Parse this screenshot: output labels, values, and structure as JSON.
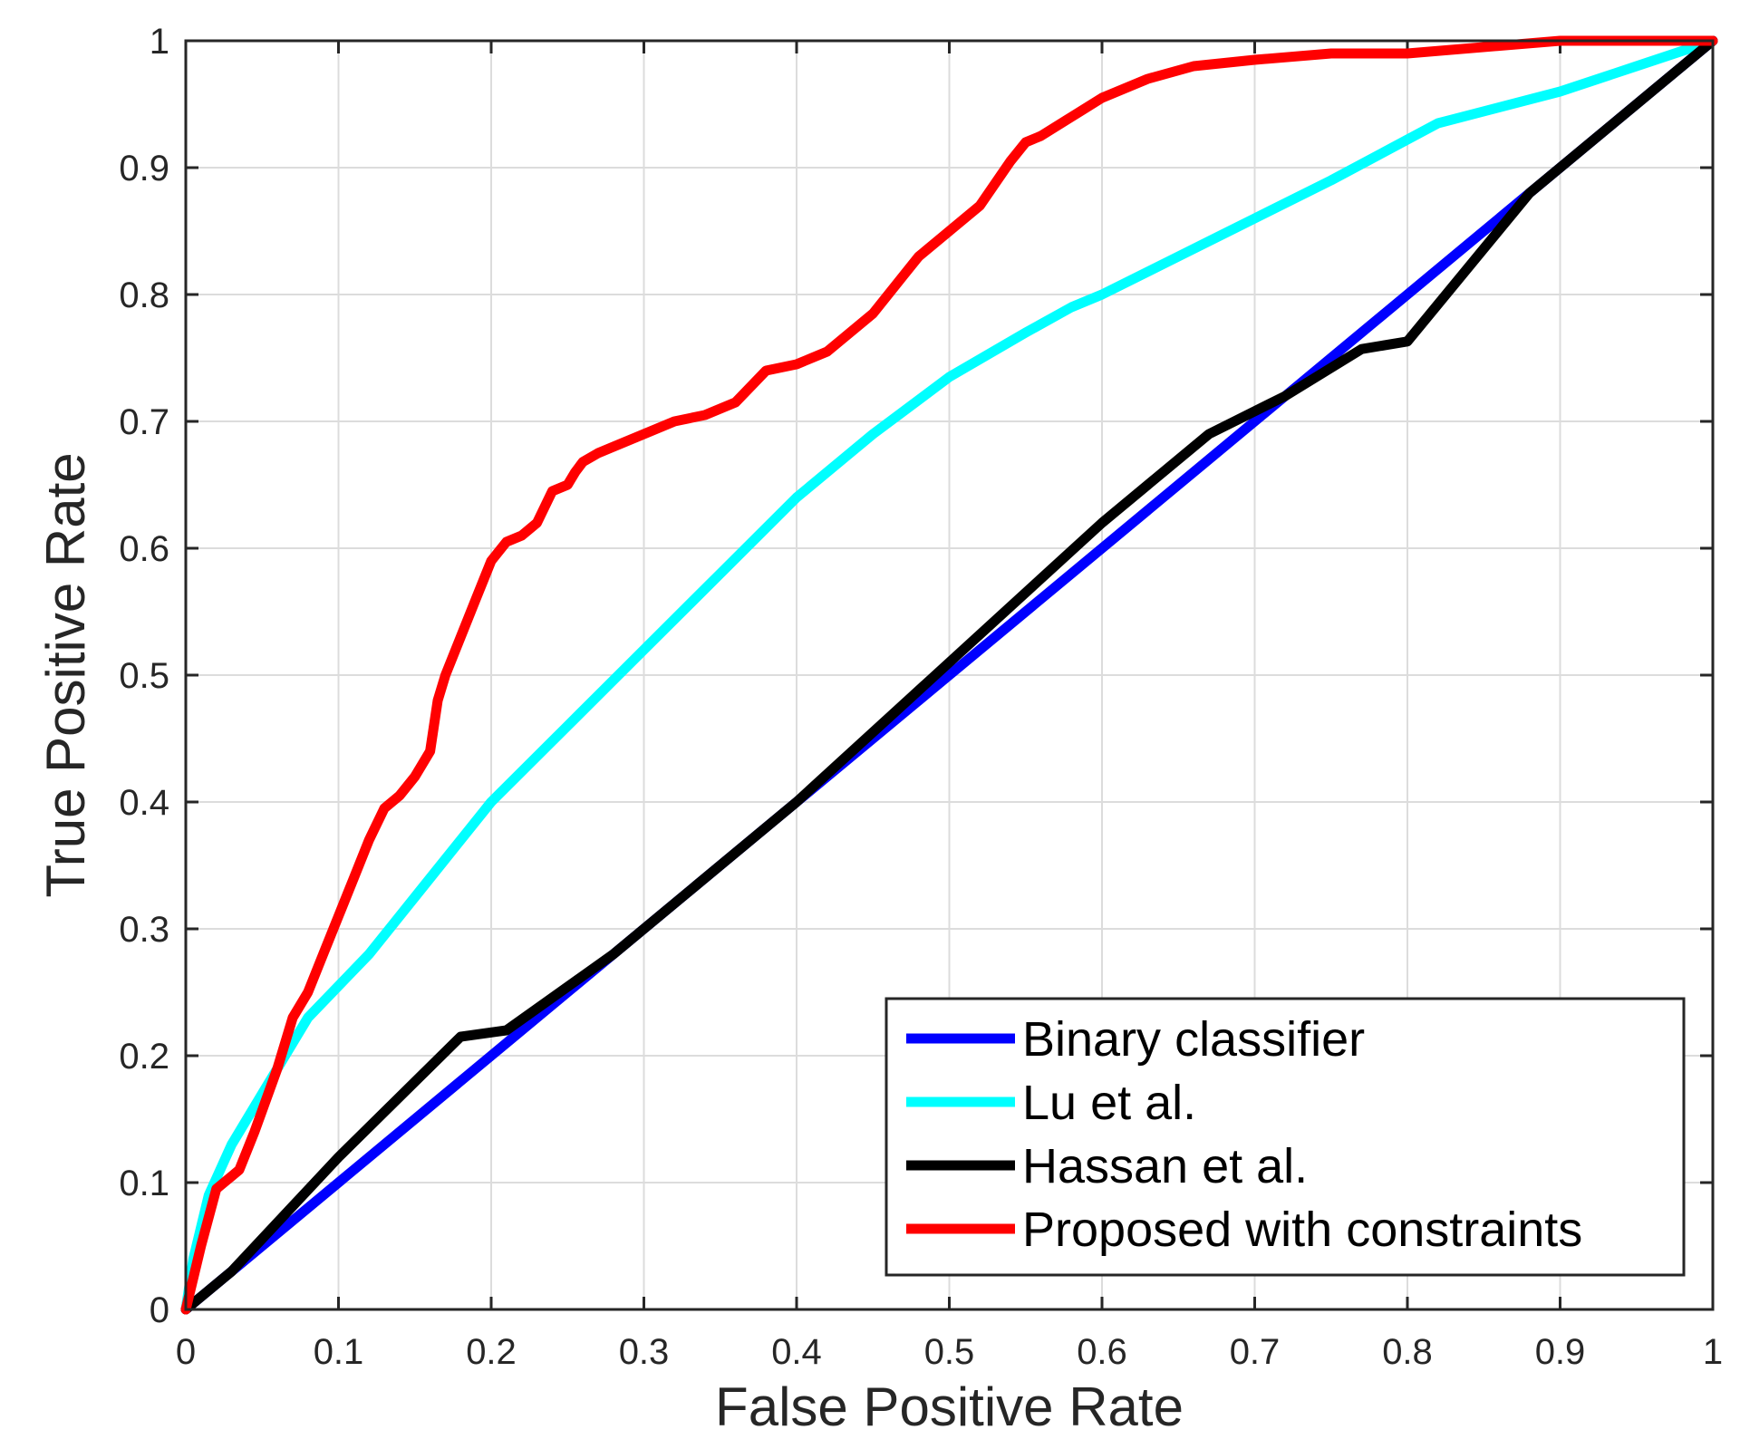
{
  "chart_data": {
    "type": "line",
    "title": "",
    "xlabel": "False Positive Rate",
    "ylabel": "True Positive Rate",
    "xlim": [
      0,
      1
    ],
    "ylim": [
      0,
      1
    ],
    "x_ticks": [
      "0",
      "0.1",
      "0.2",
      "0.3",
      "0.4",
      "0.5",
      "0.6",
      "0.7",
      "0.8",
      "0.9",
      "1"
    ],
    "y_ticks": [
      "0",
      "0.1",
      "0.2",
      "0.3",
      "0.4",
      "0.5",
      "0.6",
      "0.7",
      "0.8",
      "0.9",
      "1"
    ],
    "grid": true,
    "legend_position": "bottom-right",
    "series": [
      {
        "name": "Binary classifier",
        "color": "#0000ff",
        "x": [
          0,
          1
        ],
        "y": [
          0,
          1
        ]
      },
      {
        "name": "Lu et al.",
        "color": "#00ffff",
        "x": [
          0,
          0.005,
          0.015,
          0.03,
          0.05,
          0.08,
          0.12,
          0.16,
          0.2,
          0.25,
          0.3,
          0.35,
          0.4,
          0.45,
          0.5,
          0.55,
          0.58,
          0.6,
          0.65,
          0.7,
          0.75,
          0.82,
          0.9,
          0.95,
          1
        ],
        "y": [
          0,
          0.04,
          0.09,
          0.13,
          0.17,
          0.23,
          0.28,
          0.34,
          0.4,
          0.46,
          0.52,
          0.58,
          0.64,
          0.69,
          0.735,
          0.77,
          0.79,
          0.8,
          0.83,
          0.86,
          0.89,
          0.935,
          0.96,
          0.98,
          1
        ]
      },
      {
        "name": "Hassan et al.",
        "color": "#000000",
        "x": [
          0,
          0.03,
          0.1,
          0.18,
          0.21,
          0.28,
          0.4,
          0.5,
          0.6,
          0.67,
          0.72,
          0.77,
          0.8,
          0.88,
          0.95,
          1
        ],
        "y": [
          0,
          0.03,
          0.12,
          0.215,
          0.22,
          0.28,
          0.4,
          0.51,
          0.62,
          0.69,
          0.72,
          0.757,
          0.763,
          0.88,
          0.95,
          1
        ]
      },
      {
        "name": "Proposed with constraints",
        "color": "#ff0000",
        "x": [
          0,
          0.01,
          0.02,
          0.035,
          0.045,
          0.06,
          0.07,
          0.08,
          0.09,
          0.1,
          0.11,
          0.12,
          0.13,
          0.14,
          0.15,
          0.16,
          0.165,
          0.17,
          0.18,
          0.19,
          0.2,
          0.21,
          0.22,
          0.23,
          0.24,
          0.25,
          0.255,
          0.26,
          0.27,
          0.28,
          0.3,
          0.32,
          0.34,
          0.36,
          0.38,
          0.4,
          0.42,
          0.45,
          0.46,
          0.47,
          0.48,
          0.5,
          0.52,
          0.54,
          0.55,
          0.56,
          0.58,
          0.6,
          0.63,
          0.66,
          0.7,
          0.75,
          0.8,
          0.9,
          1
        ],
        "y": [
          0,
          0.05,
          0.095,
          0.11,
          0.14,
          0.19,
          0.23,
          0.25,
          0.28,
          0.31,
          0.34,
          0.37,
          0.395,
          0.405,
          0.42,
          0.44,
          0.48,
          0.5,
          0.53,
          0.56,
          0.59,
          0.605,
          0.61,
          0.62,
          0.645,
          0.65,
          0.66,
          0.668,
          0.675,
          0.68,
          0.69,
          0.7,
          0.705,
          0.715,
          0.74,
          0.745,
          0.755,
          0.785,
          0.8,
          0.815,
          0.83,
          0.85,
          0.87,
          0.905,
          0.92,
          0.925,
          0.94,
          0.955,
          0.97,
          0.98,
          0.985,
          0.99,
          0.99,
          1,
          1
        ]
      }
    ]
  }
}
